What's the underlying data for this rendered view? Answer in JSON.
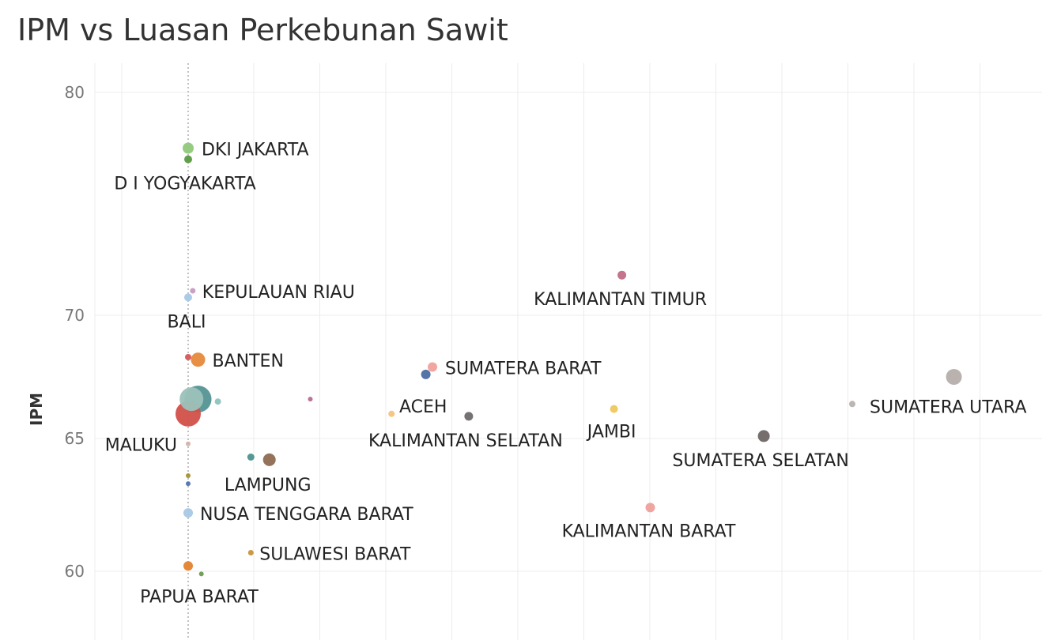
{
  "chart_data": {
    "type": "scatter",
    "title": "IPM vs Luasan Perkebunan Sawit",
    "xlabel": "",
    "ylabel": "IPM",
    "y_ticks": [
      60,
      65,
      70,
      80
    ],
    "grid": true,
    "points": [
      {
        "label": "DKI JAKARTA",
        "x": 0.0,
        "y": 77.5,
        "size": 7,
        "color": "#8fc97a"
      },
      {
        "label": "D I YOGYAKARTA",
        "x": 0.0,
        "y": 77.0,
        "size": 5,
        "color": "#5a9a43"
      },
      {
        "label": "KEPULAUAN RIAU",
        "x": 0.07,
        "y": 71.1,
        "size": 3.5,
        "color": "#c79bc2"
      },
      {
        "label": "BALI",
        "x": 0.0,
        "y": 70.8,
        "size": 5,
        "color": "#a6c8e5"
      },
      {
        "label": "",
        "x": 0.0,
        "y": 68.3,
        "size": 4,
        "color": "#d45a56"
      },
      {
        "label": "BANTEN",
        "x": 0.15,
        "y": 68.2,
        "size": 9,
        "color": "#e6893a"
      },
      {
        "label": "",
        "x": 0.05,
        "y": 66.6,
        "size": 15,
        "color": "#9bc1b9"
      },
      {
        "label": "",
        "x": 0.15,
        "y": 66.6,
        "size": 17,
        "color": "#549494"
      },
      {
        "label": "",
        "x": 0.45,
        "y": 66.5,
        "size": 4,
        "color": "#8cc4bc"
      },
      {
        "label": "",
        "x": 0.0,
        "y": 66.0,
        "size": 16,
        "color": "#d2504a"
      },
      {
        "label": "",
        "x": 1.85,
        "y": 66.6,
        "size": 3,
        "color": "#b76b91"
      },
      {
        "label": "MALUKU",
        "x": 0.0,
        "y": 64.8,
        "size": 3,
        "color": "#d3b3a6"
      },
      {
        "label": "",
        "x": 0.95,
        "y": 64.3,
        "size": 4.5,
        "color": "#4b938f"
      },
      {
        "label": "LAMPUNG",
        "x": 1.23,
        "y": 64.2,
        "size": 8,
        "color": "#8f6b52"
      },
      {
        "label": "",
        "x": 0.0,
        "y": 63.6,
        "size": 3,
        "color": "#a7922f"
      },
      {
        "label": "",
        "x": 0.0,
        "y": 63.3,
        "size": 3,
        "color": "#4f74b2"
      },
      {
        "label": "NUSA TENGGARA BARAT",
        "x": 0.0,
        "y": 62.2,
        "size": 6,
        "color": "#a8c8e6"
      },
      {
        "label": "SULAWESI BARAT",
        "x": 0.95,
        "y": 60.7,
        "size": 3.5,
        "color": "#c7953a"
      },
      {
        "label": "PAPUA BARAT",
        "x": 0.0,
        "y": 60.2,
        "size": 6,
        "color": "#e3832f"
      },
      {
        "label": "",
        "x": 0.2,
        "y": 59.9,
        "size": 3,
        "color": "#6c9b4e"
      },
      {
        "label": "SUMATERA BARAT",
        "x": 3.7,
        "y": 67.9,
        "size": 6,
        "color": "#f0a19c"
      },
      {
        "label": "",
        "x": 3.6,
        "y": 67.6,
        "size": 6,
        "color": "#4c6da1"
      },
      {
        "label": "ACEH",
        "x": 3.08,
        "y": 66.0,
        "size": 4,
        "color": "#f5c47d"
      },
      {
        "label": "KALIMANTAN SELATAN",
        "x": 4.25,
        "y": 65.9,
        "size": 5.5,
        "color": "#6e6a69"
      },
      {
        "label": "KALIMANTAN TIMUR",
        "x": 6.57,
        "y": 71.8,
        "size": 5.5,
        "color": "#c36b87"
      },
      {
        "label": "JAMBI",
        "x": 6.45,
        "y": 66.2,
        "size": 5,
        "color": "#efc85d"
      },
      {
        "label": "SUMATERA SELATAN",
        "x": 8.72,
        "y": 65.1,
        "size": 7.5,
        "color": "#6e6665"
      },
      {
        "label": "KALIMANTAN BARAT",
        "x": 7.0,
        "y": 62.4,
        "size": 6,
        "color": "#f0a09b"
      },
      {
        "label": "SUMATERA UTARA",
        "x": 10.06,
        "y": 66.4,
        "size": 4,
        "color": "#b8b1b0"
      },
      {
        "label": "",
        "x": 11.6,
        "y": 67.5,
        "size": 10,
        "color": "#b6aeab"
      }
    ]
  }
}
